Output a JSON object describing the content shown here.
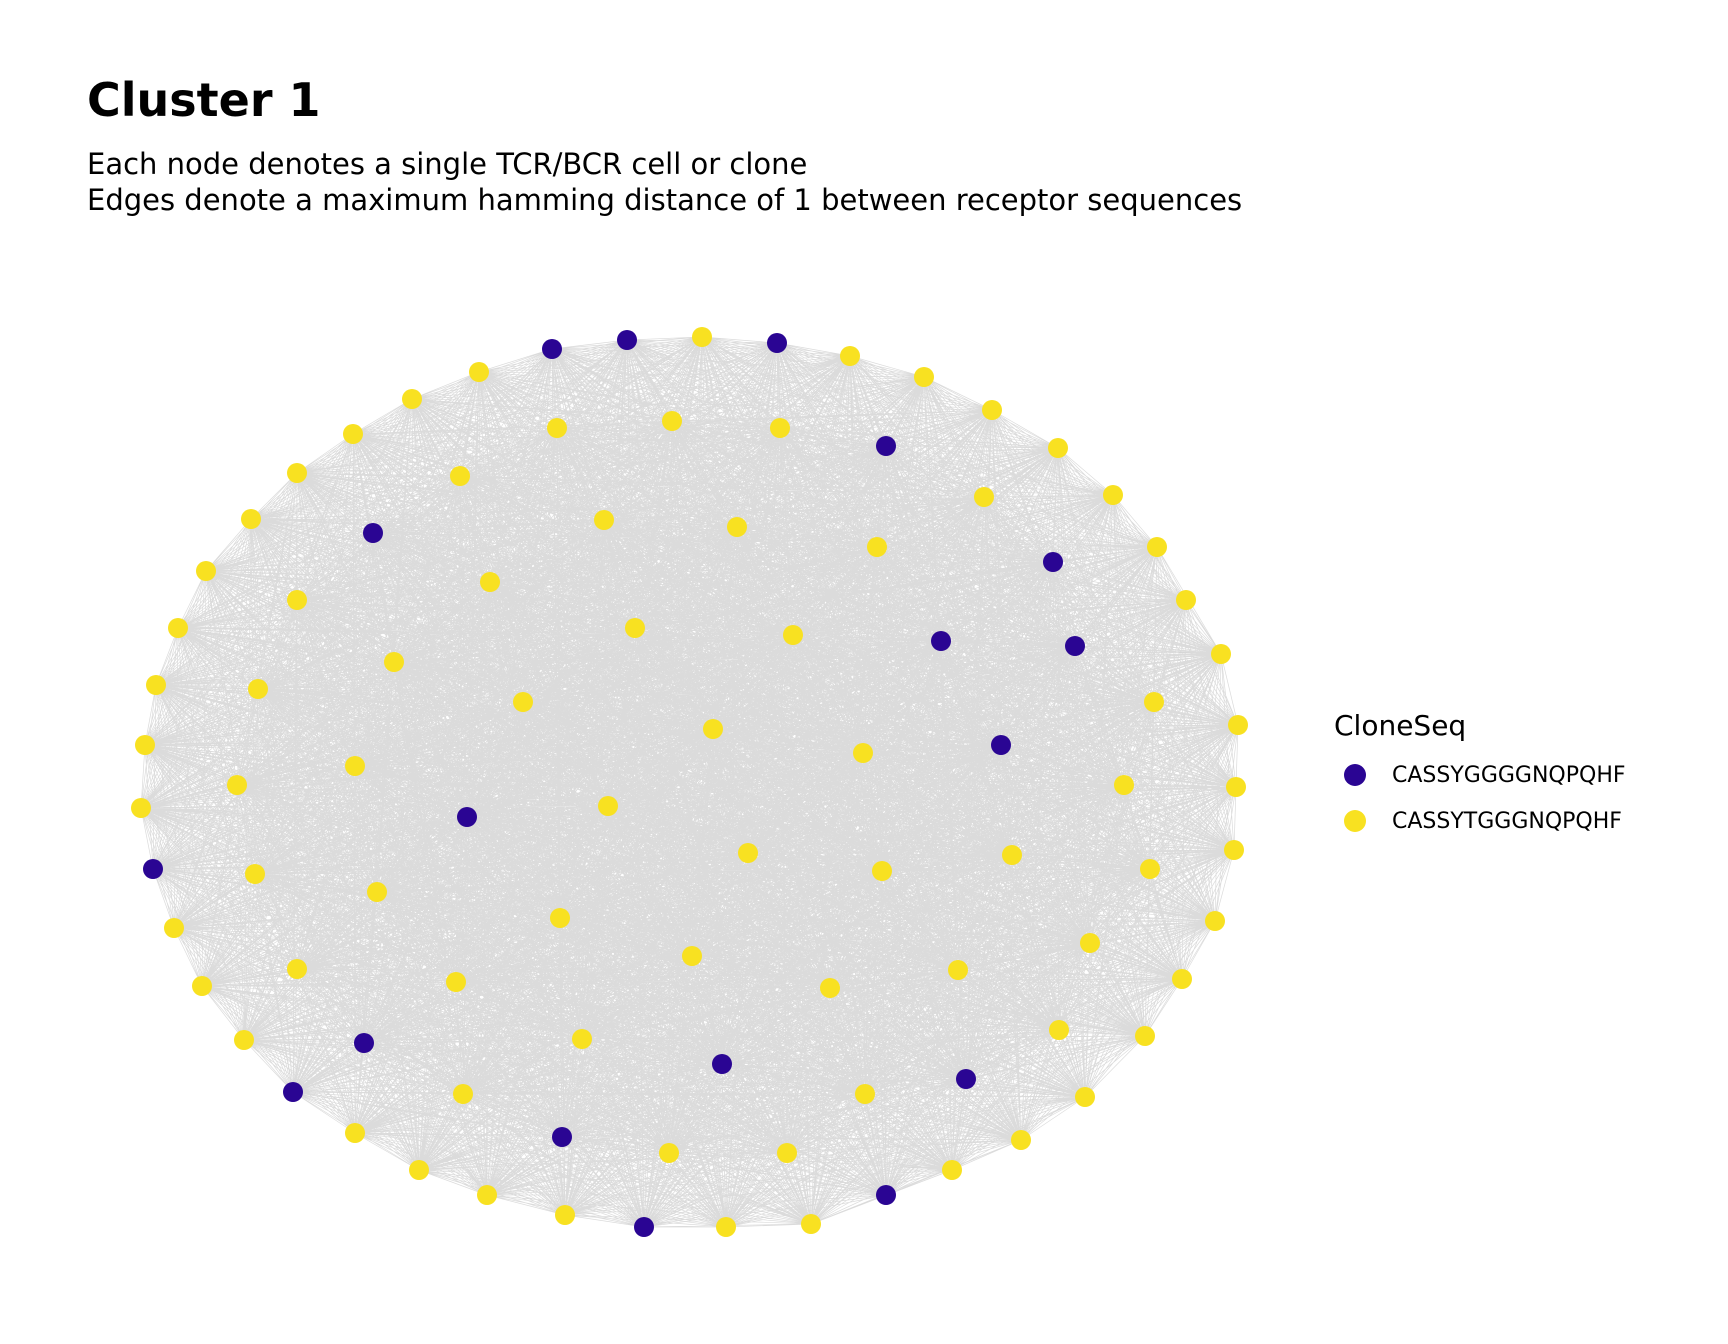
{
  "title": "Cluster 1",
  "subtitle_lines": [
    "Each node denotes a single TCR/BCR cell or clone",
    "Edges denote a maximum hamming distance of 1 between receptor sequences"
  ],
  "legend": {
    "title": "CloneSeq",
    "entries": [
      {
        "label": "CASSYGGGGNQPQHF",
        "color": "#2a0593"
      },
      {
        "label": "CASSYTGGGNQPQHF",
        "color": "#f8e121"
      }
    ]
  },
  "colors": {
    "edge": "#bebebe"
  },
  "network": {
    "layout": "circle-packing (outer ring + inner rings)",
    "edges": "complete graph (all nodes connected)",
    "node_count": 96,
    "dark_node_count": 21,
    "light_node_count": 75
  }
}
